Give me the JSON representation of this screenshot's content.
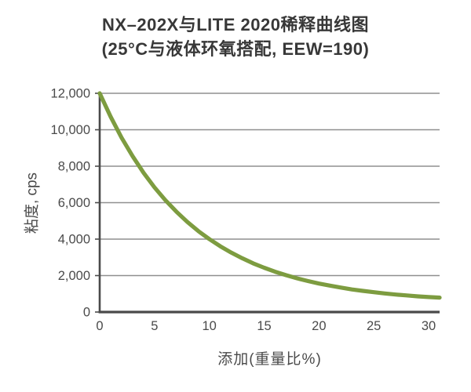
{
  "chart": {
    "title_line1": "NX–202X与LITE 2020稀释曲线图",
    "title_line2": "(25°C与液体环氧搭配, EEW=190)",
    "xlabel": "添加(重量比%)",
    "ylabel": "粘度, cps"
  },
  "chart_data": {
    "type": "line",
    "title": "NX–202X与LITE 2020稀释曲线图",
    "subtitle": "(25°C与液体环氧搭配, EEW=190)",
    "xlabel": "添加(重量比%)",
    "ylabel": "粘度, cps",
    "xlim": [
      0,
      31
    ],
    "ylim": [
      0,
      12000
    ],
    "x_ticks": [
      0,
      5,
      10,
      15,
      20,
      25,
      30
    ],
    "y_ticks": [
      0,
      2000,
      4000,
      6000,
      8000,
      10000,
      12000
    ],
    "y_tick_labels": [
      "0",
      "2,000",
      "4,000",
      "6,000",
      "8,000",
      "10,000",
      "12,000"
    ],
    "grid": "horizontal",
    "legend": "none",
    "series": [
      {
        "name": "NX-202X",
        "x": [
          0,
          1,
          2,
          3,
          4,
          5,
          6,
          7,
          8,
          9,
          10,
          11,
          12,
          13,
          14,
          15,
          16,
          17,
          18,
          19,
          20,
          21,
          22,
          23,
          24,
          25,
          26,
          27,
          28,
          29,
          30,
          31
        ],
        "y": [
          12000,
          10710,
          9560,
          8550,
          7640,
          6840,
          6130,
          5500,
          4940,
          4440,
          4000,
          3610,
          3260,
          2950,
          2670,
          2430,
          2210,
          2020,
          1850,
          1700,
          1560,
          1450,
          1340,
          1240,
          1160,
          1090,
          1020,
          960,
          910,
          860,
          820,
          790
        ]
      }
    ],
    "colors": {
      "curve": "#7d9c40",
      "grid": "#8f8f8f",
      "axis": "#4a4a4a",
      "text": "#4a4a4a",
      "title": "#383838"
    }
  }
}
